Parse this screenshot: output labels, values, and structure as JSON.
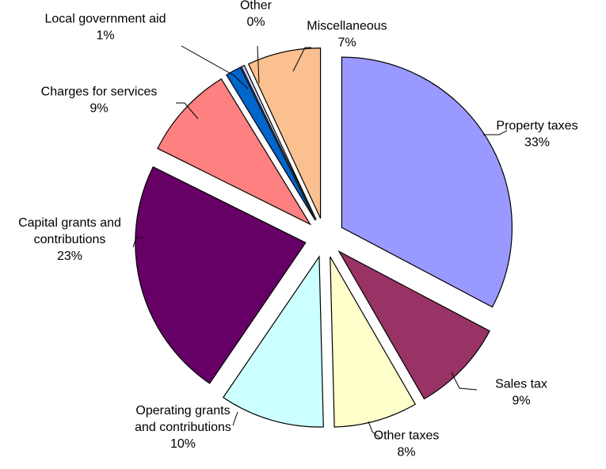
{
  "chart_data": {
    "type": "pie",
    "title": "",
    "legend": "none",
    "slices": [
      {
        "name": "Property taxes",
        "pct_label": "33%",
        "value": 33,
        "color": "#9999FF"
      },
      {
        "name": "Sales tax",
        "pct_label": "9%",
        "value": 9,
        "color": "#993366"
      },
      {
        "name": "Other taxes",
        "pct_label": "8%",
        "value": 8,
        "color": "#FFFFCC"
      },
      {
        "name": "Operating grants and contributions",
        "pct_label": "10%",
        "value": 10,
        "color": "#CCFFFF"
      },
      {
        "name": "Capital grants and contributions",
        "pct_label": "23%",
        "value": 23,
        "color": "#660066"
      },
      {
        "name": "Charges for services",
        "pct_label": "9%",
        "value": 9,
        "color": "#FF8080"
      },
      {
        "name": "Local government aid",
        "pct_label": "1%",
        "value": 1.5,
        "color": "#0066CC"
      },
      {
        "name": "Other",
        "pct_label": "0%",
        "value": 0.3,
        "color": "#CCCCFF"
      },
      {
        "name": "Miscellaneous",
        "pct_label": "7%",
        "value": 7,
        "color": "#FAC090"
      }
    ]
  }
}
